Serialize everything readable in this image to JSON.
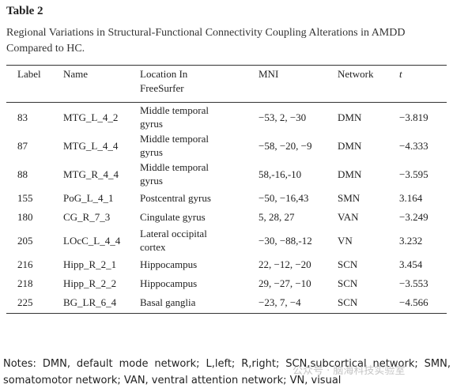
{
  "title": "Table 2",
  "caption": "Regional Variations in Structural-Functional Connectivity Coupling Alterations in AMDD Compared to HC.",
  "table": {
    "headers": [
      "Label",
      "Name",
      "Location In FreeSurfer",
      "MNI",
      "Network",
      "t"
    ],
    "rows": [
      [
        "83",
        "MTG_L_4_2",
        "Middle temporal gyrus",
        "−53, 2, −30",
        "DMN",
        "−3.819"
      ],
      [
        "87",
        "MTG_L_4_4",
        "Middle temporal gyrus",
        "−58, −20, −9",
        "DMN",
        "−4.333"
      ],
      [
        "88",
        "MTG_R_4_4",
        "Middle temporal gyrus",
        "58,-16,-10",
        "DMN",
        "−3.595"
      ],
      [
        "155",
        "PoG_L_4_1",
        "Postcentral gyrus",
        "−50, −16,43",
        "SMN",
        "3.164"
      ],
      [
        "180",
        "CG_R_7_3",
        "Cingulate gyrus",
        "5, 28, 27",
        "VAN",
        "−3.249"
      ],
      [
        "205",
        "LOcC_L_4_4",
        "Lateral occipital cortex",
        "−30, −88,-12",
        "VN",
        "3.232"
      ],
      [
        "216",
        "Hipp_R_2_1",
        "Hippocampus",
        "22, −12, −20",
        "SCN",
        "3.454"
      ],
      [
        "218",
        "Hipp_R_2_2",
        "Hippocampus",
        "29, −27, −10",
        "SCN",
        "−3.553"
      ],
      [
        "225",
        "BG_LR_6_4",
        "Basal ganglia",
        "−23, 7, −4",
        "SCN",
        "−4.566"
      ]
    ]
  },
  "notes": "Notes: DMN, default mode network; L,left; R,right; SCN,subcortical network; SMN, somatomotor network; VAN, ventral attention network; VN, visual",
  "watermark": "公众号 · 脑海科技实验室"
}
